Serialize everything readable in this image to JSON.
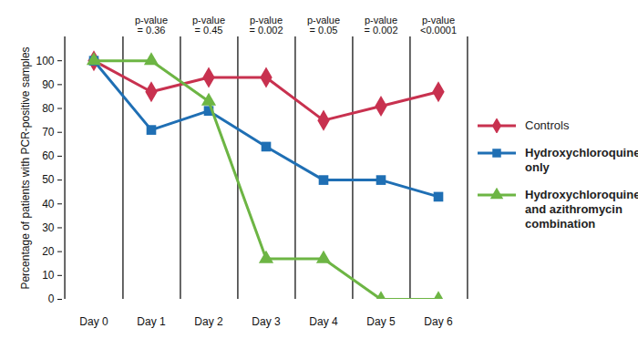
{
  "chart_data": {
    "type": "line",
    "y_label": "Percentage of patients with PCR-positive samples",
    "categories": [
      "Day 0",
      "Day 1",
      "Day 2",
      "Day 3",
      "Day 4",
      "Day 5",
      "Day 6"
    ],
    "ylim": [
      0,
      110
    ],
    "yticks": [
      0,
      10,
      20,
      30,
      40,
      50,
      60,
      70,
      80,
      90,
      100
    ],
    "grid": false,
    "legend": "right",
    "annotations": [
      {
        "category": "Day 1",
        "text": "p-value\n= 0.36"
      },
      {
        "category": "Day 2",
        "text": "p-value\n= 0.45"
      },
      {
        "category": "Day 3",
        "text": "p-value\n= 0.002"
      },
      {
        "category": "Day 4",
        "text": "p-value\n= 0.05"
      },
      {
        "category": "Day 5",
        "text": "p-value\n= 0.002"
      },
      {
        "category": "Day 6",
        "text": "p-value\n<0.0001"
      }
    ],
    "series": [
      {
        "name": "Controls",
        "color": "#c8314f",
        "marker": "diamond",
        "values": [
          100,
          87,
          93,
          93,
          75,
          81,
          87
        ]
      },
      {
        "name": "Hydroxychloroquine only",
        "color": "#1f6fb4",
        "marker": "square",
        "values": [
          100,
          71,
          79,
          64,
          50,
          50,
          43
        ]
      },
      {
        "name": "Hydroxychloroquine and azithromycin combination",
        "color": "#6db544",
        "marker": "triangle",
        "values": [
          100,
          100,
          83,
          17,
          17,
          0,
          0
        ]
      }
    ]
  }
}
